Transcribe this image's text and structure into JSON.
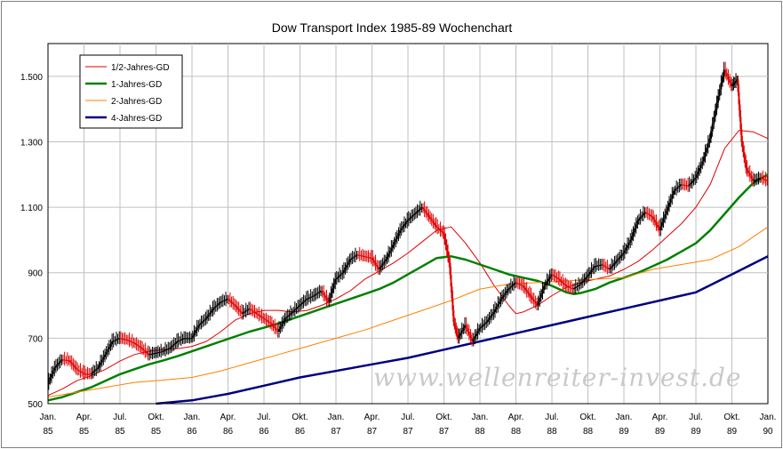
{
  "chart_data": {
    "type": "line",
    "title": "Dow Transport Index 1985-89 Wochenchart",
    "watermark": "www.wellenreiter-invest.de",
    "xlabel": "",
    "ylabel": "",
    "ylim": [
      500,
      1600
    ],
    "xlim": [
      1985.0,
      1990.0
    ],
    "grid": true,
    "legend_position": "top-left",
    "y_ticks": [
      {
        "value": 500,
        "label": "500"
      },
      {
        "value": 700,
        "label": "700"
      },
      {
        "value": 900,
        "label": "900"
      },
      {
        "value": 1100,
        "label": "1.100"
      },
      {
        "value": 1300,
        "label": "1.300"
      },
      {
        "value": 1500,
        "label": "1.500"
      }
    ],
    "x_ticks": [
      {
        "x": 1985.0,
        "month": "Jan.",
        "year": "85"
      },
      {
        "x": 1985.25,
        "month": "Apr.",
        "year": "85"
      },
      {
        "x": 1985.5,
        "month": "Jul.",
        "year": "85"
      },
      {
        "x": 1985.75,
        "month": "Okt.",
        "year": "85"
      },
      {
        "x": 1986.0,
        "month": "Jan.",
        "year": "86"
      },
      {
        "x": 1986.25,
        "month": "Apr.",
        "year": "86"
      },
      {
        "x": 1986.5,
        "month": "Jul.",
        "year": "86"
      },
      {
        "x": 1986.75,
        "month": "Okt.",
        "year": "86"
      },
      {
        "x": 1987.0,
        "month": "Jan.",
        "year": "87"
      },
      {
        "x": 1987.25,
        "month": "Apr.",
        "year": "87"
      },
      {
        "x": 1987.5,
        "month": "Jul.",
        "year": "87"
      },
      {
        "x": 1987.75,
        "month": "Okt.",
        "year": "87"
      },
      {
        "x": 1988.0,
        "month": "Jan.",
        "year": "88"
      },
      {
        "x": 1988.25,
        "month": "Apr.",
        "year": "88"
      },
      {
        "x": 1988.5,
        "month": "Jul.",
        "year": "88"
      },
      {
        "x": 1988.75,
        "month": "Okt.",
        "year": "88"
      },
      {
        "x": 1989.0,
        "month": "Jan.",
        "year": "89"
      },
      {
        "x": 1989.25,
        "month": "Apr.",
        "year": "89"
      },
      {
        "x": 1989.5,
        "month": "Jul.",
        "year": "89"
      },
      {
        "x": 1989.75,
        "month": "Okt.",
        "year": "89"
      },
      {
        "x": 1990.0,
        "month": "Jan.",
        "year": "90"
      }
    ],
    "price": {
      "style": "weekly high-low bars, red body for declines, black for advances",
      "up_color": "#000000",
      "down_color": "#e00000",
      "points": [
        [
          1985.0,
          560
        ],
        [
          1985.05,
          610
        ],
        [
          1985.1,
          635
        ],
        [
          1985.15,
          632
        ],
        [
          1985.2,
          605
        ],
        [
          1985.25,
          592
        ],
        [
          1985.3,
          590
        ],
        [
          1985.35,
          610
        ],
        [
          1985.4,
          650
        ],
        [
          1985.45,
          690
        ],
        [
          1985.5,
          700
        ],
        [
          1985.55,
          695
        ],
        [
          1985.6,
          685
        ],
        [
          1985.65,
          670
        ],
        [
          1985.7,
          650
        ],
        [
          1985.75,
          655
        ],
        [
          1985.8,
          660
        ],
        [
          1985.85,
          670
        ],
        [
          1985.9,
          690
        ],
        [
          1985.95,
          700
        ],
        [
          1986.0,
          700
        ],
        [
          1986.05,
          740
        ],
        [
          1986.1,
          760
        ],
        [
          1986.15,
          790
        ],
        [
          1986.2,
          810
        ],
        [
          1986.25,
          820
        ],
        [
          1986.3,
          800
        ],
        [
          1986.35,
          775
        ],
        [
          1986.4,
          790
        ],
        [
          1986.45,
          775
        ],
        [
          1986.5,
          760
        ],
        [
          1986.55,
          745
        ],
        [
          1986.6,
          720
        ],
        [
          1986.65,
          760
        ],
        [
          1986.7,
          780
        ],
        [
          1986.75,
          800
        ],
        [
          1986.8,
          820
        ],
        [
          1986.85,
          830
        ],
        [
          1986.9,
          845
        ],
        [
          1986.95,
          810
        ],
        [
          1987.0,
          880
        ],
        [
          1987.05,
          900
        ],
        [
          1987.1,
          940
        ],
        [
          1987.15,
          955
        ],
        [
          1987.2,
          950
        ],
        [
          1987.25,
          945
        ],
        [
          1987.3,
          910
        ],
        [
          1987.35,
          940
        ],
        [
          1987.4,
          985
        ],
        [
          1987.45,
          1030
        ],
        [
          1987.5,
          1060
        ],
        [
          1987.55,
          1080
        ],
        [
          1987.6,
          1100
        ],
        [
          1987.65,
          1070
        ],
        [
          1987.7,
          1040
        ],
        [
          1987.75,
          1020
        ],
        [
          1987.79,
          930
        ],
        [
          1987.82,
          750
        ],
        [
          1987.85,
          700
        ],
        [
          1987.9,
          740
        ],
        [
          1987.95,
          690
        ],
        [
          1988.0,
          730
        ],
        [
          1988.05,
          750
        ],
        [
          1988.1,
          780
        ],
        [
          1988.15,
          820
        ],
        [
          1988.2,
          850
        ],
        [
          1988.25,
          870
        ],
        [
          1988.3,
          860
        ],
        [
          1988.35,
          830
        ],
        [
          1988.4,
          800
        ],
        [
          1988.45,
          860
        ],
        [
          1988.5,
          895
        ],
        [
          1988.55,
          880
        ],
        [
          1988.6,
          860
        ],
        [
          1988.65,
          850
        ],
        [
          1988.7,
          865
        ],
        [
          1988.75,
          890
        ],
        [
          1988.8,
          920
        ],
        [
          1988.85,
          925
        ],
        [
          1988.9,
          910
        ],
        [
          1988.95,
          935
        ],
        [
          1989.0,
          960
        ],
        [
          1989.05,
          1000
        ],
        [
          1989.1,
          1060
        ],
        [
          1989.15,
          1085
        ],
        [
          1989.2,
          1070
        ],
        [
          1989.25,
          1030
        ],
        [
          1989.3,
          1090
        ],
        [
          1989.35,
          1150
        ],
        [
          1989.4,
          1170
        ],
        [
          1989.45,
          1165
        ],
        [
          1989.5,
          1190
        ],
        [
          1989.55,
          1240
        ],
        [
          1989.6,
          1310
        ],
        [
          1989.65,
          1420
        ],
        [
          1989.7,
          1520
        ],
        [
          1989.75,
          1470
        ],
        [
          1989.79,
          1490
        ],
        [
          1989.82,
          1300
        ],
        [
          1989.85,
          1220
        ],
        [
          1989.9,
          1180
        ],
        [
          1989.95,
          1190
        ],
        [
          1990.0,
          1180
        ]
      ]
    },
    "series": [
      {
        "name": "1/2-Jahres-GD",
        "color": "#e00000",
        "points": [
          [
            1985.0,
            525
          ],
          [
            1985.1,
            545
          ],
          [
            1985.2,
            570
          ],
          [
            1985.3,
            585
          ],
          [
            1985.4,
            605
          ],
          [
            1985.5,
            630
          ],
          [
            1985.6,
            650
          ],
          [
            1985.7,
            660
          ],
          [
            1985.8,
            665
          ],
          [
            1985.9,
            668
          ],
          [
            1986.0,
            675
          ],
          [
            1986.1,
            690
          ],
          [
            1986.2,
            720
          ],
          [
            1986.3,
            755
          ],
          [
            1986.4,
            775
          ],
          [
            1986.5,
            785
          ],
          [
            1986.6,
            785
          ],
          [
            1986.7,
            780
          ],
          [
            1986.8,
            785
          ],
          [
            1986.9,
            800
          ],
          [
            1987.0,
            820
          ],
          [
            1987.1,
            845
          ],
          [
            1987.2,
            880
          ],
          [
            1987.3,
            905
          ],
          [
            1987.4,
            930
          ],
          [
            1987.5,
            960
          ],
          [
            1987.6,
            995
          ],
          [
            1987.7,
            1030
          ],
          [
            1987.8,
            1040
          ],
          [
            1987.9,
            990
          ],
          [
            1988.0,
            930
          ],
          [
            1988.1,
            860
          ],
          [
            1988.2,
            800
          ],
          [
            1988.25,
            775
          ],
          [
            1988.3,
            780
          ],
          [
            1988.4,
            800
          ],
          [
            1988.5,
            830
          ],
          [
            1988.6,
            855
          ],
          [
            1988.7,
            870
          ],
          [
            1988.8,
            880
          ],
          [
            1988.9,
            890
          ],
          [
            1989.0,
            910
          ],
          [
            1989.1,
            935
          ],
          [
            1989.2,
            970
          ],
          [
            1989.3,
            1010
          ],
          [
            1989.4,
            1050
          ],
          [
            1989.5,
            1100
          ],
          [
            1989.6,
            1170
          ],
          [
            1989.7,
            1280
          ],
          [
            1989.8,
            1335
          ],
          [
            1989.9,
            1330
          ],
          [
            1990.0,
            1310
          ]
        ]
      },
      {
        "name": "1-Jahres-GD",
        "color": "#008000",
        "points": [
          [
            1985.0,
            510
          ],
          [
            1985.1,
            520
          ],
          [
            1985.2,
            535
          ],
          [
            1985.3,
            550
          ],
          [
            1985.4,
            570
          ],
          [
            1985.5,
            590
          ],
          [
            1985.6,
            605
          ],
          [
            1985.7,
            620
          ],
          [
            1985.8,
            632
          ],
          [
            1985.9,
            645
          ],
          [
            1986.0,
            660
          ],
          [
            1986.1,
            675
          ],
          [
            1986.2,
            690
          ],
          [
            1986.3,
            705
          ],
          [
            1986.4,
            720
          ],
          [
            1986.5,
            732
          ],
          [
            1986.6,
            745
          ],
          [
            1986.7,
            760
          ],
          [
            1986.8,
            775
          ],
          [
            1986.9,
            790
          ],
          [
            1987.0,
            805
          ],
          [
            1987.1,
            820
          ],
          [
            1987.2,
            835
          ],
          [
            1987.3,
            850
          ],
          [
            1987.4,
            870
          ],
          [
            1987.5,
            895
          ],
          [
            1987.6,
            920
          ],
          [
            1987.7,
            945
          ],
          [
            1987.8,
            950
          ],
          [
            1987.9,
            940
          ],
          [
            1988.0,
            925
          ],
          [
            1988.1,
            910
          ],
          [
            1988.2,
            895
          ],
          [
            1988.3,
            885
          ],
          [
            1988.4,
            875
          ],
          [
            1988.5,
            860
          ],
          [
            1988.6,
            840
          ],
          [
            1988.65,
            835
          ],
          [
            1988.7,
            838
          ],
          [
            1988.8,
            850
          ],
          [
            1988.9,
            870
          ],
          [
            1989.0,
            885
          ],
          [
            1989.1,
            900
          ],
          [
            1989.2,
            920
          ],
          [
            1989.3,
            940
          ],
          [
            1989.4,
            965
          ],
          [
            1989.5,
            990
          ],
          [
            1989.6,
            1030
          ],
          [
            1989.7,
            1080
          ],
          [
            1989.8,
            1130
          ],
          [
            1989.9,
            1175
          ],
          [
            1990.0,
            1200
          ]
        ]
      },
      {
        "name": "2-Jahres-GD",
        "color": "#ff8000",
        "points": [
          [
            1985.0,
            520
          ],
          [
            1985.2,
            535
          ],
          [
            1985.4,
            550
          ],
          [
            1985.6,
            565
          ],
          [
            1985.8,
            572
          ],
          [
            1986.0,
            580
          ],
          [
            1986.2,
            600
          ],
          [
            1986.4,
            625
          ],
          [
            1986.6,
            650
          ],
          [
            1986.8,
            675
          ],
          [
            1987.0,
            700
          ],
          [
            1987.2,
            725
          ],
          [
            1987.4,
            755
          ],
          [
            1987.6,
            785
          ],
          [
            1987.8,
            815
          ],
          [
            1988.0,
            850
          ],
          [
            1988.2,
            865
          ],
          [
            1988.4,
            870
          ],
          [
            1988.6,
            875
          ],
          [
            1988.8,
            880
          ],
          [
            1989.0,
            885
          ],
          [
            1989.2,
            910
          ],
          [
            1989.4,
            925
          ],
          [
            1989.6,
            940
          ],
          [
            1989.8,
            980
          ],
          [
            1990.0,
            1040
          ]
        ]
      },
      {
        "name": "4-Jahres-GD",
        "color": "#000080",
        "points": [
          [
            1985.75,
            500
          ],
          [
            1986.0,
            510
          ],
          [
            1986.25,
            530
          ],
          [
            1986.5,
            555
          ],
          [
            1986.75,
            580
          ],
          [
            1987.0,
            600
          ],
          [
            1987.25,
            620
          ],
          [
            1987.5,
            640
          ],
          [
            1987.75,
            665
          ],
          [
            1988.0,
            690
          ],
          [
            1988.25,
            715
          ],
          [
            1988.5,
            740
          ],
          [
            1988.75,
            765
          ],
          [
            1989.0,
            790
          ],
          [
            1989.25,
            815
          ],
          [
            1989.5,
            840
          ],
          [
            1989.75,
            895
          ],
          [
            1990.0,
            950
          ]
        ]
      }
    ]
  }
}
